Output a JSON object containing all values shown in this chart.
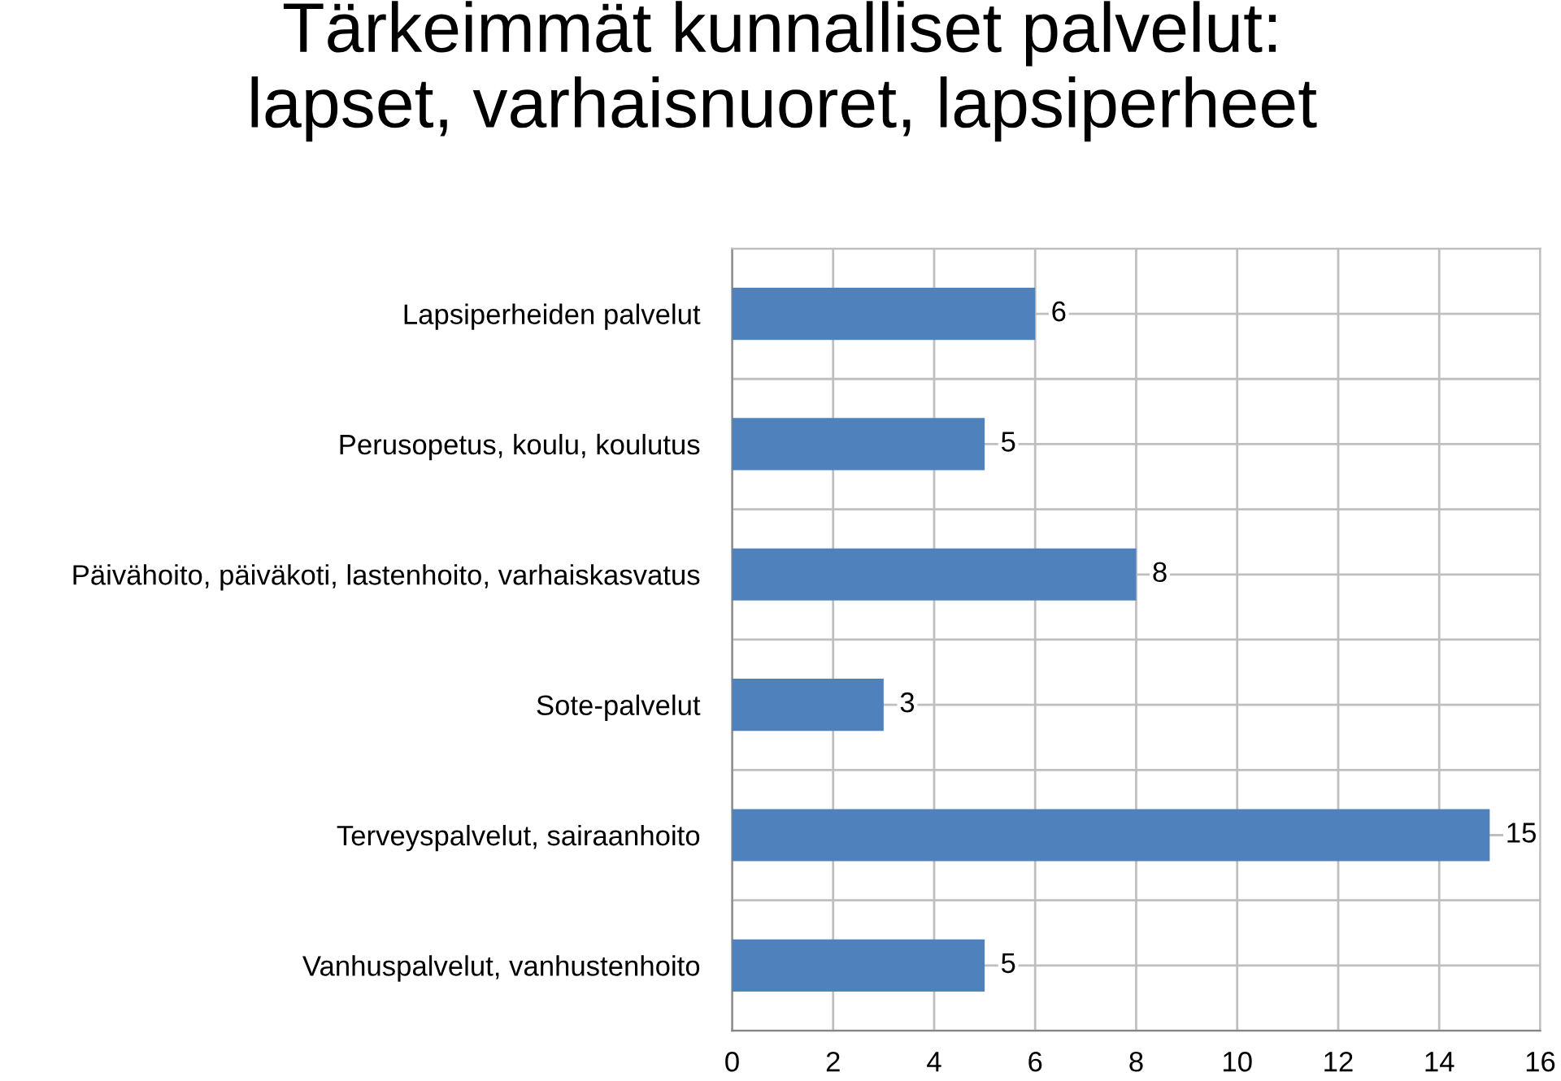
{
  "chart_data": {
    "type": "bar",
    "orientation": "horizontal",
    "title": "Tärkeimmät kunnalliset palvelut:\nlapset, varhaisnuoret, lapsiperheet",
    "categories": [
      "Lapsiperheiden palvelut",
      "Perusopetus, koulu, koulutus",
      "Päivähoito, päiväkoti, lastenhoito, varhaiskasvatus",
      "Sote-palvelut",
      "Terveyspalvelut, sairaanhoito",
      "Vanhuspalvelut, vanhustenhoito"
    ],
    "values": [
      6,
      5,
      8,
      3,
      15,
      5
    ],
    "color": "#4f81bd",
    "xlim": [
      0,
      16
    ],
    "xticks": [
      0,
      2,
      4,
      6,
      8,
      10,
      12,
      14,
      16
    ],
    "data_labels": true,
    "grid": true
  }
}
